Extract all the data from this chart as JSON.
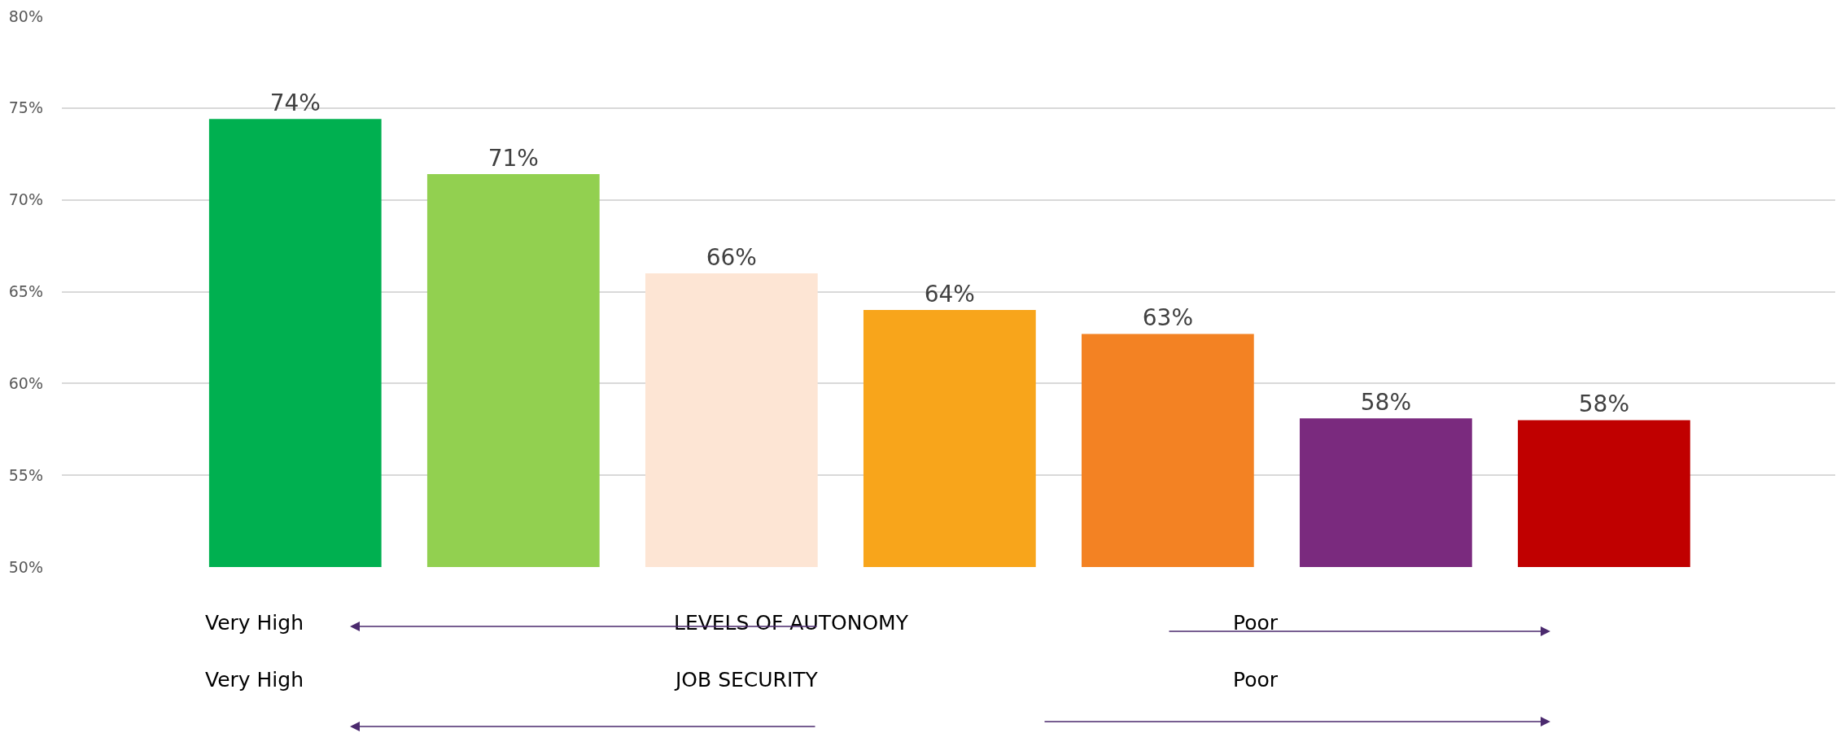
{
  "chart_data": {
    "type": "bar",
    "categories": [
      null,
      null,
      null,
      null,
      null,
      null,
      null
    ],
    "values": [
      74.4,
      71.4,
      66.0,
      64.0,
      62.7,
      58.1,
      58.0
    ],
    "colors": [
      "#00b050",
      "#92d050",
      "#fde5d4",
      "#f8a51b",
      "#f38223",
      "#7a2a7e",
      "#c00000"
    ],
    "value_labels": [
      "74%",
      "71%",
      "66%",
      "64%",
      "63%",
      "58%",
      "58%"
    ],
    "ylim": [
      50,
      80
    ],
    "yticks": [
      {
        "value": 50,
        "label": "50%"
      },
      {
        "value": 55,
        "label": "55%"
      },
      {
        "value": 60,
        "label": "60%"
      },
      {
        "value": 65,
        "label": "65%"
      },
      {
        "value": 70,
        "label": "70%"
      },
      {
        "value": 75,
        "label": "75%"
      },
      {
        "value": 80,
        "label": "80%"
      }
    ],
    "grid": "y",
    "tick_labels": "y",
    "annotations": [
      "Very High",
      "LEVELS OF AUTONOMY",
      "Poor",
      "Very High",
      "JOB SECURITY",
      "Poor"
    ]
  }
}
